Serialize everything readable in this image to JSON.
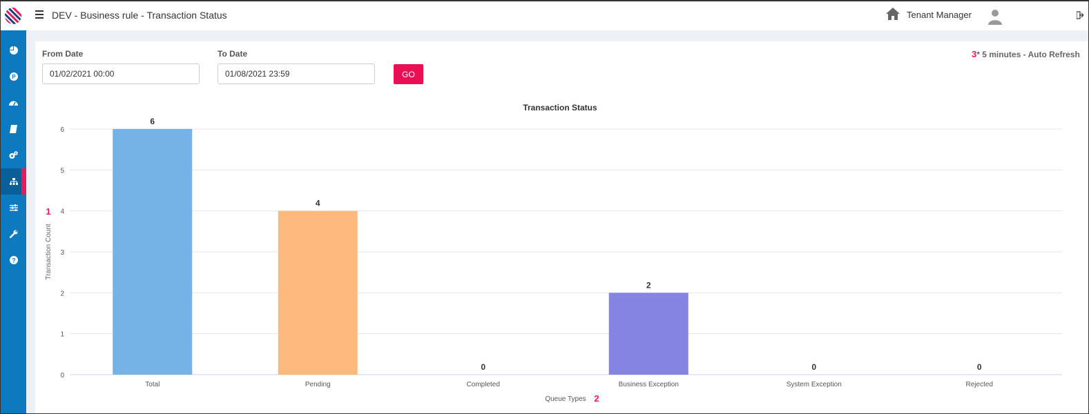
{
  "header": {
    "title": "DEV - Business rule - Transaction Status",
    "tenant_label": "Tenant Manager"
  },
  "sidebar": {
    "items": [
      {
        "icon": "pie-chart-icon"
      },
      {
        "icon": "p-circle-icon"
      },
      {
        "icon": "dashboard-gauge-icon"
      },
      {
        "icon": "book-icon"
      },
      {
        "icon": "gears-icon"
      },
      {
        "icon": "sitemap-icon",
        "active": true
      },
      {
        "icon": "sliders-icon"
      },
      {
        "icon": "wrench-icon"
      },
      {
        "icon": "help-circle-icon"
      }
    ]
  },
  "filters": {
    "from_label": "From Date",
    "from_value": "01/02/2021 00:00",
    "to_label": "To Date",
    "to_value": "01/08/2021 23:59",
    "go_label": "GO",
    "auto_refresh_num": "3",
    "auto_refresh_text": "* 5 minutes - Auto Refresh"
  },
  "colors": {
    "accent": "#ea0f55",
    "sidebar": "#0d79be"
  },
  "chart_data": {
    "type": "bar",
    "title": "Transaction Status",
    "xlabel": "Queue Types",
    "xlabel_marker": "2",
    "ylabel": "Transaction Count",
    "ylabel_marker": "1",
    "categories": [
      "Total",
      "Pending",
      "Completed",
      "Business Exception",
      "System Exception",
      "Rejected"
    ],
    "values": [
      6,
      4,
      0,
      2,
      0,
      0
    ],
    "colors": [
      "#75b2e6",
      "#feba7e",
      "#8cd68c",
      "#8584e2",
      "#f28c8c",
      "#9ccbd1"
    ],
    "ylim": [
      0,
      6
    ],
    "yticks": [
      0,
      1,
      2,
      3,
      4,
      5,
      6
    ],
    "grid": true
  }
}
